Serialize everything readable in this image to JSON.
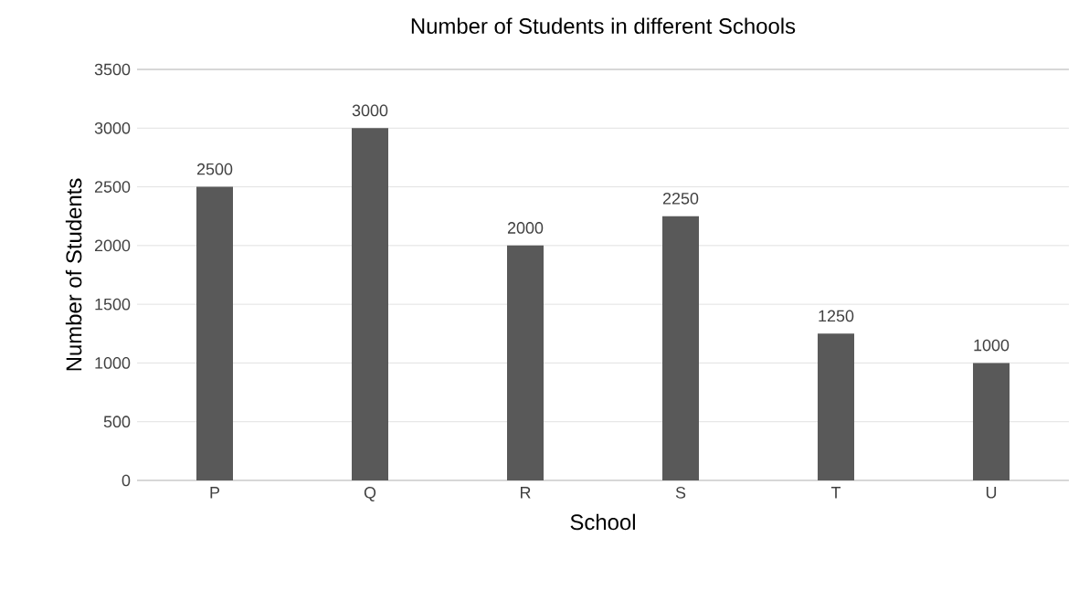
{
  "chart_data": {
    "type": "bar",
    "title": "Number of Students in different Schools",
    "xlabel": "School",
    "ylabel": "Number of Students",
    "categories": [
      "P",
      "Q",
      "R",
      "S",
      "T",
      "U"
    ],
    "values": [
      2500,
      3000,
      2000,
      2250,
      1250,
      1000
    ],
    "color": "#595959",
    "ylim": [
      0,
      3500
    ],
    "yticks": [
      0,
      500,
      1000,
      1500,
      2000,
      2500,
      3000,
      3500
    ],
    "grid": "y",
    "data_labels": true
  }
}
